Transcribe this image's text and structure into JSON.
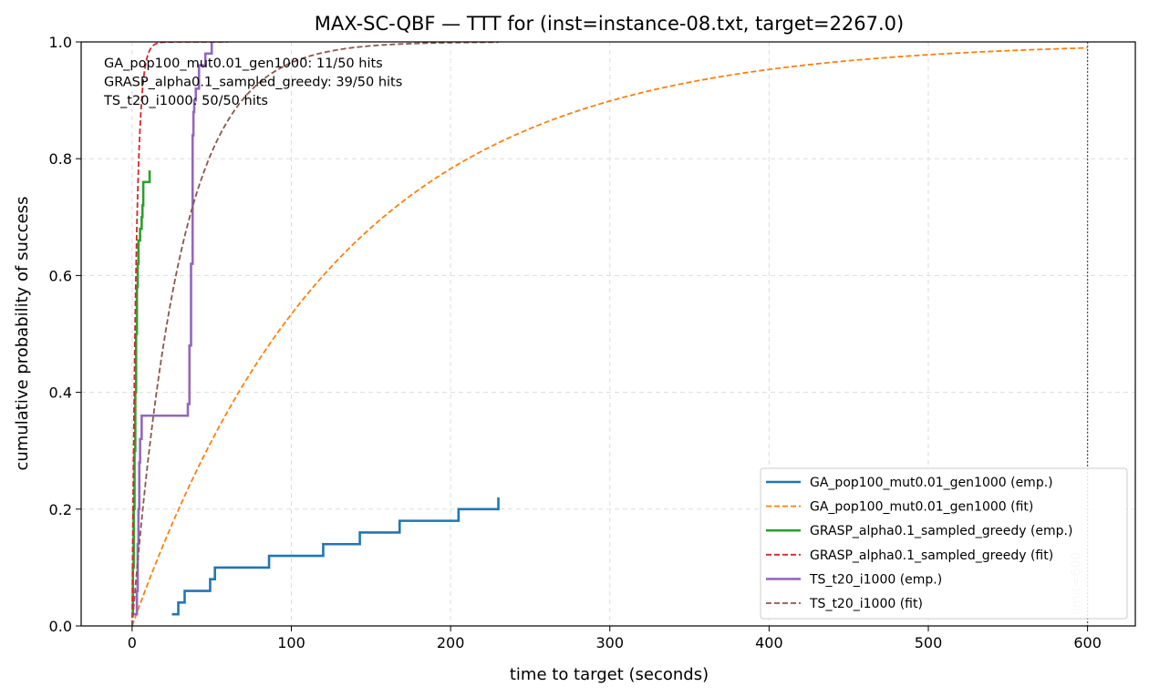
{
  "chart_data": {
    "type": "line",
    "title": "MAX-SC-QBF — TTT for (inst=instance-08.txt, target=2267.0)",
    "xlabel": "time to target (seconds)",
    "ylabel": "cumulative probability of success",
    "xlim": [
      -32,
      630
    ],
    "ylim": [
      0,
      1.0
    ],
    "xticks": [
      0,
      100,
      200,
      300,
      400,
      500,
      600
    ],
    "yticks": [
      0.0,
      0.2,
      0.4,
      0.6,
      0.8,
      1.0
    ],
    "xtick_labels": [
      "0",
      "100",
      "200",
      "300",
      "400",
      "500",
      "600"
    ],
    "ytick_labels": [
      "0.0",
      "0.2",
      "0.4",
      "0.6",
      "0.8",
      "1.0"
    ],
    "grid": true,
    "legend_position": "lower-right",
    "annotations": [
      "GA_pop100_mut0.01_gen1000: 11/50 hits",
      "GRASP_alpha0.1_sampled_greedy: 39/50 hits",
      "TS_t20_i1000: 50/50 hits"
    ],
    "vline": {
      "x": 600,
      "label": "limit=600"
    },
    "series": [
      {
        "name": "GA_pop100_mut0.01_gen1000 (emp.)",
        "kind": "empirical",
        "color": "#1f77b4",
        "points": [
          [
            25,
            0.02
          ],
          [
            29,
            0.02
          ],
          [
            29,
            0.04
          ],
          [
            33,
            0.04
          ],
          [
            33,
            0.06
          ],
          [
            49,
            0.06
          ],
          [
            49,
            0.08
          ],
          [
            52,
            0.08
          ],
          [
            52,
            0.1
          ],
          [
            86,
            0.1
          ],
          [
            86,
            0.12
          ],
          [
            120,
            0.12
          ],
          [
            120,
            0.14
          ],
          [
            143,
            0.14
          ],
          [
            143,
            0.16
          ],
          [
            168,
            0.16
          ],
          [
            168,
            0.18
          ],
          [
            205,
            0.18
          ],
          [
            205,
            0.2
          ],
          [
            230,
            0.2
          ],
          [
            230,
            0.22
          ]
        ]
      },
      {
        "name": "GA_pop100_mut0.01_gen1000 (fit)",
        "kind": "fit",
        "color": "#ff7f0e",
        "shift": 0,
        "mean": 131,
        "x_range": [
          0,
          600
        ]
      },
      {
        "name": "GRASP_alpha0.1_sampled_greedy (emp.)",
        "kind": "empirical",
        "color": "#2ca02c",
        "points": [
          [
            0,
            0.02
          ],
          [
            0.5,
            0.02
          ],
          [
            0.5,
            0.1
          ],
          [
            1,
            0.1
          ],
          [
            1,
            0.2
          ],
          [
            1.5,
            0.2
          ],
          [
            1.5,
            0.3
          ],
          [
            2,
            0.3
          ],
          [
            2,
            0.4
          ],
          [
            2.5,
            0.4
          ],
          [
            2.5,
            0.5
          ],
          [
            3,
            0.5
          ],
          [
            3,
            0.58
          ],
          [
            3.5,
            0.58
          ],
          [
            3.5,
            0.62
          ],
          [
            4,
            0.62
          ],
          [
            4,
            0.66
          ],
          [
            5,
            0.66
          ],
          [
            5,
            0.68
          ],
          [
            6,
            0.68
          ],
          [
            6,
            0.7
          ],
          [
            6.5,
            0.7
          ],
          [
            6.5,
            0.72
          ],
          [
            7,
            0.72
          ],
          [
            7,
            0.76
          ],
          [
            11,
            0.76
          ],
          [
            11,
            0.78
          ]
        ]
      },
      {
        "name": "GRASP_alpha0.1_sampled_greedy (fit)",
        "kind": "fit",
        "color": "#d62728",
        "shift": 0,
        "mean": 2.6,
        "x_range": [
          0,
          60
        ]
      },
      {
        "name": "TS_t20_i1000 (emp.)",
        "kind": "empirical",
        "color": "#9467bd",
        "points": [
          [
            0,
            0.02
          ],
          [
            3,
            0.02
          ],
          [
            3,
            0.06
          ],
          [
            3.5,
            0.06
          ],
          [
            3.5,
            0.14
          ],
          [
            4,
            0.14
          ],
          [
            4,
            0.2
          ],
          [
            4.5,
            0.2
          ],
          [
            4.5,
            0.28
          ],
          [
            5,
            0.28
          ],
          [
            5,
            0.32
          ],
          [
            6,
            0.32
          ],
          [
            6,
            0.36
          ],
          [
            35,
            0.36
          ],
          [
            35,
            0.38
          ],
          [
            36,
            0.38
          ],
          [
            36,
            0.48
          ],
          [
            37,
            0.48
          ],
          [
            37,
            0.62
          ],
          [
            38,
            0.62
          ],
          [
            38,
            0.84
          ],
          [
            38.5,
            0.84
          ],
          [
            38.5,
            0.88
          ],
          [
            39,
            0.88
          ],
          [
            39,
            0.9
          ],
          [
            40,
            0.9
          ],
          [
            40,
            0.92
          ],
          [
            42,
            0.92
          ],
          [
            42,
            0.96
          ],
          [
            46,
            0.96
          ],
          [
            46,
            0.98
          ],
          [
            50,
            0.98
          ],
          [
            50,
            1.0
          ]
        ]
      },
      {
        "name": "TS_t20_i1000 (fit)",
        "kind": "fit",
        "color": "#8c564b",
        "shift": 0,
        "mean": 30,
        "x_range": [
          0,
          230
        ]
      }
    ]
  }
}
